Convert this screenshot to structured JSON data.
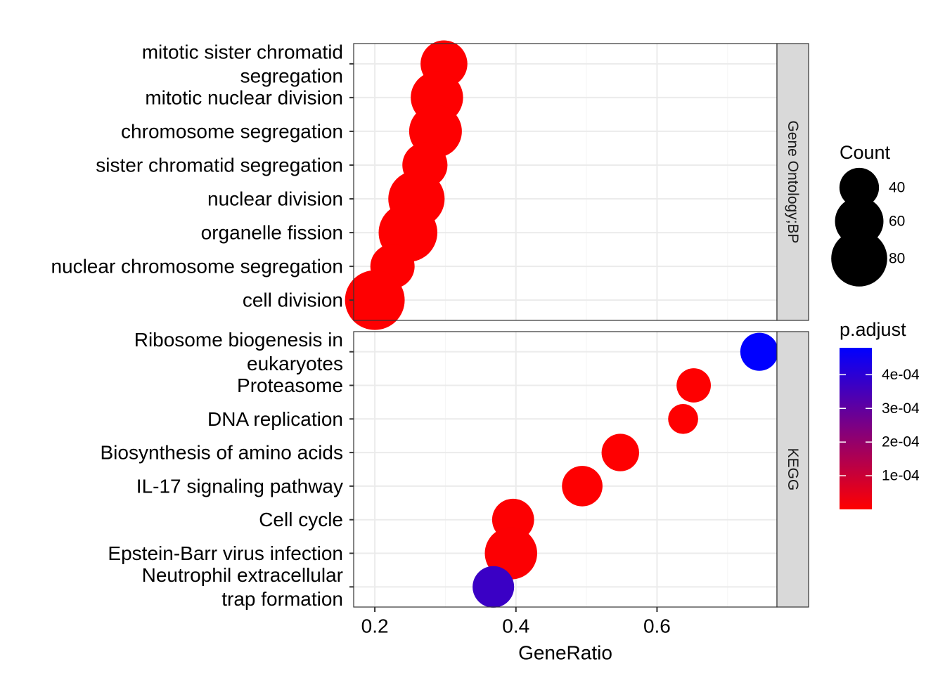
{
  "chart_data": {
    "type": "scatter",
    "subtype": "faceted dot plot",
    "xlabel": "GeneRatio",
    "x_ticks": [
      0.2,
      0.4,
      0.6
    ],
    "x_tick_labels": [
      "0.2",
      "0.4",
      "0.6"
    ],
    "xlim": [
      0.17,
      0.77
    ],
    "grid": true,
    "legend_position": "right",
    "facets": [
      {
        "strip_label": "Gene Ontology;BP",
        "categories": [
          [
            "mitotic sister chromatid",
            "segregation"
          ],
          [
            "mitotic nuclear division"
          ],
          [
            "chromosome segregation"
          ],
          [
            "sister chromatid segregation"
          ],
          [
            "nuclear division"
          ],
          [
            "organelle fission"
          ],
          [
            "nuclear chromosome segregation"
          ],
          [
            "cell division"
          ]
        ],
        "gene_ratio": [
          0.298,
          0.288,
          0.286,
          0.271,
          0.259,
          0.247,
          0.225,
          0.2
        ],
        "count": [
          56,
          70,
          71,
          52,
          81,
          88,
          50,
          91
        ],
        "p_adjust": [
          1e-06,
          1e-06,
          1e-06,
          1e-06,
          1e-06,
          1e-06,
          1e-06,
          1e-06
        ]
      },
      {
        "strip_label": "KEGG",
        "categories": [
          [
            "Ribosome biogenesis in",
            "eukaryotes"
          ],
          [
            "Proteasome"
          ],
          [
            "DNA replication"
          ],
          [
            "Biosynthesis of amino acids"
          ],
          [
            "IL-17 signaling pathway"
          ],
          [
            "Cell cycle"
          ],
          [
            "Epstein-Barr virus infection"
          ],
          [
            "Neutrophil extracellular",
            "trap formation"
          ]
        ],
        "gene_ratio": [
          0.745,
          0.652,
          0.637,
          0.548,
          0.494,
          0.396,
          0.393,
          0.368
        ],
        "count": [
          37,
          30,
          23,
          36,
          42,
          45,
          70,
          44
        ],
        "p_adjust": [
          0.00048,
          2e-06,
          2e-06,
          2e-06,
          2e-06,
          3e-06,
          6e-06,
          0.00037
        ]
      }
    ],
    "size_legend": {
      "title": "Count",
      "values": [
        40,
        60,
        80
      ],
      "labels": [
        "40",
        "60",
        "80"
      ]
    },
    "color_legend": {
      "title": "p.adjust",
      "range": [
        0,
        0.00048
      ],
      "low_color": "#FF0000",
      "high_color": "#0000FF",
      "ticks": [
        0.0001,
        0.0002,
        0.0003,
        0.0004
      ],
      "tick_labels": [
        "1e-04",
        "2e-04",
        "3e-04",
        "4e-04"
      ]
    },
    "colors": {
      "strip_fill": "#D9D9D9",
      "grid_major": "#EBEBEB",
      "grid_minor": "#F5F5F5",
      "panel_border": "#333333"
    }
  }
}
